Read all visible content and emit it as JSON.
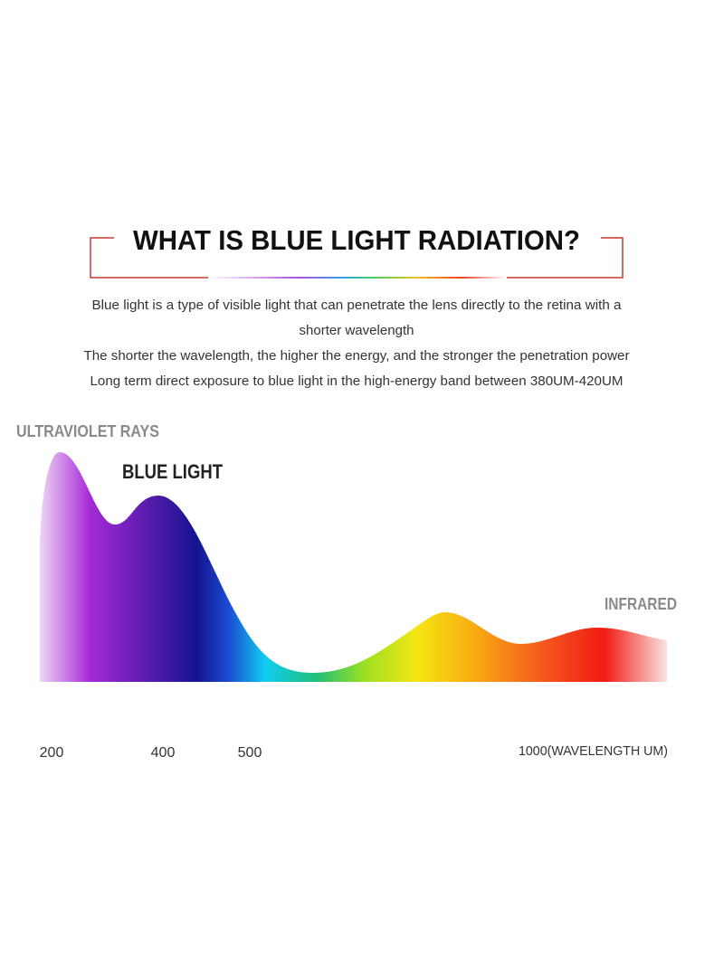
{
  "header": {
    "title": "WHAT IS BLUE LIGHT RADIATION?"
  },
  "intro": {
    "lines": [
      "Blue light is a type of visible light that can penetrate the lens directly to the retina with a",
      "shorter wavelength",
      "The shorter the wavelength, the higher the energy, and the stronger the penetration power",
      "Long term direct exposure to blue light in the high-energy band between 380UM-420UM"
    ]
  },
  "spectrum": {
    "ultraviolet_label": "ULTRAVIOLET RAYS",
    "blue_light_label": "BLUE LIGHT",
    "infrared_label": "INFRARED",
    "axis_labels": [
      "200",
      "400",
      "500",
      "1000(WAVELENGTH UM)"
    ]
  }
}
